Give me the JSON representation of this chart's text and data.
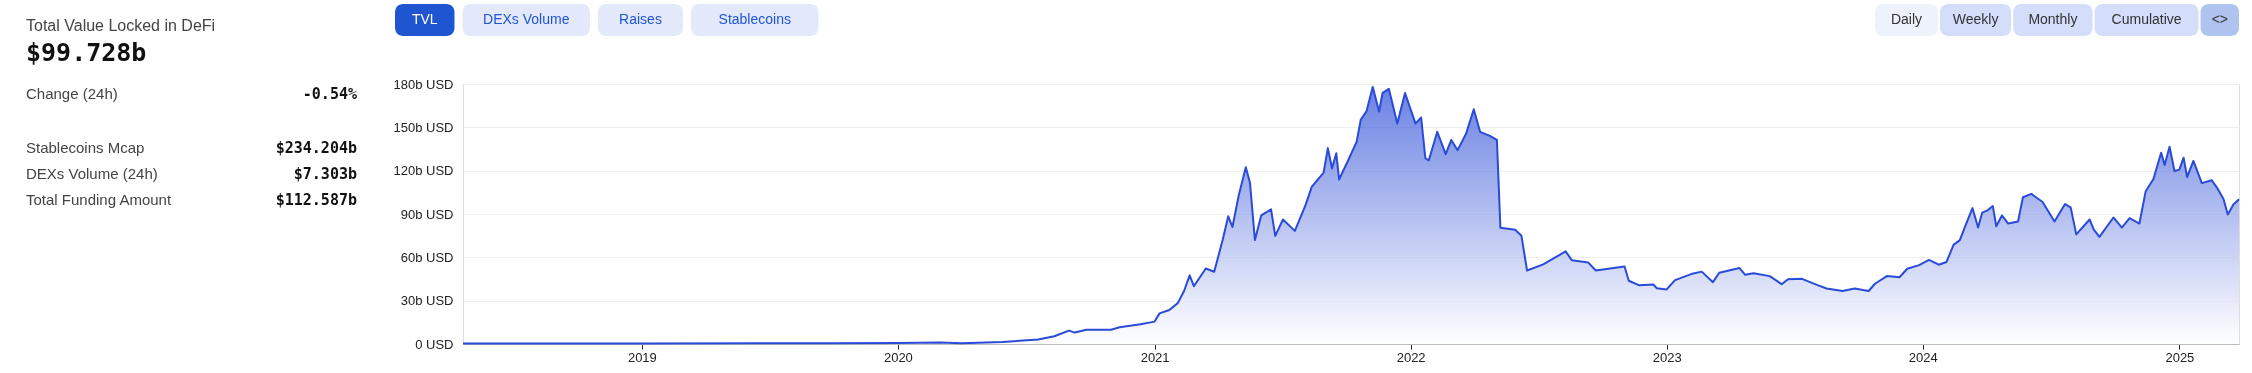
{
  "chart_data": {
    "type": "area",
    "title": "Total Value Locked in DeFi",
    "subtitle": "$99.728b",
    "x": [
      "2018-04-21",
      "2018-09-01",
      "2019-01-01",
      "2019-06-15",
      "2019-10-01",
      "2020-01-01",
      "2020-03-01",
      "2020-04-01",
      "2020-05-29",
      "2020-07-19",
      "2020-08-11",
      "2020-09-01",
      "2020-09-09",
      "2020-09-26",
      "2020-10-31",
      "2020-11-12",
      "2020-12-12",
      "2021-01-01",
      "2021-01-08",
      "2021-01-22",
      "2021-02-03",
      "2021-02-12",
      "2021-02-20",
      "2021-02-26",
      "2021-03-15",
      "2021-03-27",
      "2021-04-08",
      "2021-04-16",
      "2021-04-22",
      "2021-05-01",
      "2021-05-11",
      "2021-05-17",
      "2021-05-24",
      "2021-06-02",
      "2021-06-16",
      "2021-06-22",
      "2021-07-03",
      "2021-07-20",
      "2021-08-04",
      "2021-08-13",
      "2021-08-30",
      "2021-09-05",
      "2021-09-11",
      "2021-09-17",
      "2021-09-21",
      "2021-10-04",
      "2021-10-16",
      "2021-10-22",
      "2021-10-30",
      "2021-11-08",
      "2021-11-17",
      "2021-11-22",
      "2021-12-01",
      "2021-12-13",
      "2021-12-24",
      "2022-01-08",
      "2022-01-16",
      "2022-01-22",
      "2022-01-27",
      "2022-02-08",
      "2022-02-20",
      "2022-02-28",
      "2022-03-09",
      "2022-03-21",
      "2022-04-01",
      "2022-04-10",
      "2022-04-24",
      "2022-05-04",
      "2022-05-09",
      "2022-05-30",
      "2022-06-08",
      "2022-06-16",
      "2022-07-09",
      "2022-08-10",
      "2022-08-19",
      "2022-09-11",
      "2022-09-22",
      "2022-11-02",
      "2022-11-08",
      "2022-11-23",
      "2022-12-13",
      "2022-12-18",
      "2023-01-01",
      "2023-01-13",
      "2023-02-05",
      "2023-02-20",
      "2023-03-08",
      "2023-03-17",
      "2023-04-15",
      "2023-04-23",
      "2023-05-05",
      "2023-05-28",
      "2023-06-14",
      "2023-06-23",
      "2023-07-13",
      "2023-08-05",
      "2023-08-17",
      "2023-09-09",
      "2023-09-26",
      "2023-10-16",
      "2023-10-25",
      "2023-11-11",
      "2023-11-29",
      "2023-12-10",
      "2023-12-27",
      "2024-01-10",
      "2024-01-24",
      "2024-02-04",
      "2024-02-14",
      "2024-02-23",
      "2024-03-02",
      "2024-03-12",
      "2024-03-20",
      "2024-03-26",
      "2024-04-03",
      "2024-04-10",
      "2024-04-15",
      "2024-04-23",
      "2024-05-02",
      "2024-05-16",
      "2024-05-23",
      "2024-06-04",
      "2024-06-20",
      "2024-07-07",
      "2024-07-22",
      "2024-07-30",
      "2024-08-07",
      "2024-08-26",
      "2024-09-01",
      "2024-09-09",
      "2024-09-29",
      "2024-10-11",
      "2024-10-22",
      "2024-11-05",
      "2024-11-14",
      "2024-11-25",
      "2024-12-06",
      "2024-12-11",
      "2024-12-18",
      "2024-12-25",
      "2025-01-01",
      "2025-01-07",
      "2025-01-12",
      "2025-01-21",
      "2025-02-02",
      "2025-02-16",
      "2025-02-25",
      "2025-03-05",
      "2025-03-11",
      "2025-03-19",
      "2025-03-27"
    ],
    "series": [
      {
        "color": "#2a4bd7",
        "values": [
          0.3,
          0.3,
          0.4,
          0.6,
          0.6,
          0.7,
          1.0,
          0.6,
          1.4,
          3.1,
          5.4,
          9.3,
          7.9,
          9.9,
          9.9,
          11.6,
          13.6,
          15.5,
          21.2,
          23.5,
          28.3,
          36.7,
          47.5,
          40,
          52.3,
          50,
          72,
          88.4,
          81,
          103,
          122.3,
          111.6,
          72,
          89,
          93.2,
          74.9,
          86.2,
          78.3,
          96,
          108.8,
          118.7,
          135.6,
          121.5,
          132,
          113.9,
          127.2,
          139.9,
          155.4,
          161,
          178,
          161,
          173.8,
          176.6,
          152.6,
          173.8,
          152.6,
          156.8,
          128.6,
          127.2,
          146.9,
          131.4,
          141.3,
          134.2,
          145.5,
          162.5,
          146.9,
          144.1,
          141.3,
          80.5,
          79.1,
          74.9,
          50.9,
          55.1,
          64.1,
          57.9,
          56.5,
          50.9,
          53.7,
          43.8,
          40.6,
          41.2,
          38.6,
          37.8,
          44.2,
          48.4,
          50.1,
          42.8,
          49.3,
          52.6,
          47.9,
          49,
          47,
          41.4,
          44.8,
          45.1,
          40.6,
          38.4,
          36.7,
          38.4,
          36.7,
          41.7,
          47,
          46.2,
          52.1,
          54.6,
          58.2,
          54.9,
          56.8,
          68.6,
          71.9,
          82,
          94.1,
          80.6,
          91,
          92.7,
          95.5,
          81.5,
          89,
          83.4,
          84.8,
          101.6,
          103.9,
          98.3,
          84.8,
          96.9,
          94.6,
          75.9,
          86.2,
          79.2,
          74.2,
          87.6,
          80.6,
          87.1,
          83.4,
          105.8,
          114.2,
          132.4,
          124,
          136.6,
          119.8,
          120.7,
          129,
          115.6,
          126.8,
          111.4,
          113.4,
          107.2,
          100.2,
          89.6,
          96.6,
          100.2
        ]
      }
    ],
    "xlim": [
      "2018-04-21",
      "2025-03-27"
    ],
    "xticks": [
      "2019",
      "2020",
      "2021",
      "2022",
      "2023",
      "2024",
      "2025"
    ],
    "ylim": [
      0,
      180
    ],
    "yticks": [
      {
        "value": 0,
        "label": "0 USD"
      },
      {
        "value": 30,
        "label": "30b USD"
      },
      {
        "value": 60,
        "label": "60b USD"
      },
      {
        "value": 90,
        "label": "90b USD"
      },
      {
        "value": 120,
        "label": "120b USD"
      },
      {
        "value": 150,
        "label": "150b USD"
      },
      {
        "value": 180,
        "label": "180b USD"
      }
    ],
    "grid": "y",
    "annotations": [
      "Change (24h)",
      "-0.54%",
      "Stablecoins Mcap",
      "$234.204b",
      "DEXs Volume (24h)",
      "$7.303b",
      "Total Funding Amount",
      "$112.587b",
      "TVL",
      "DEXs Volume",
      "Raises",
      "Stablecoins",
      "Daily",
      "Weekly",
      "Monthly",
      "Cumulative",
      "<>"
    ]
  }
}
